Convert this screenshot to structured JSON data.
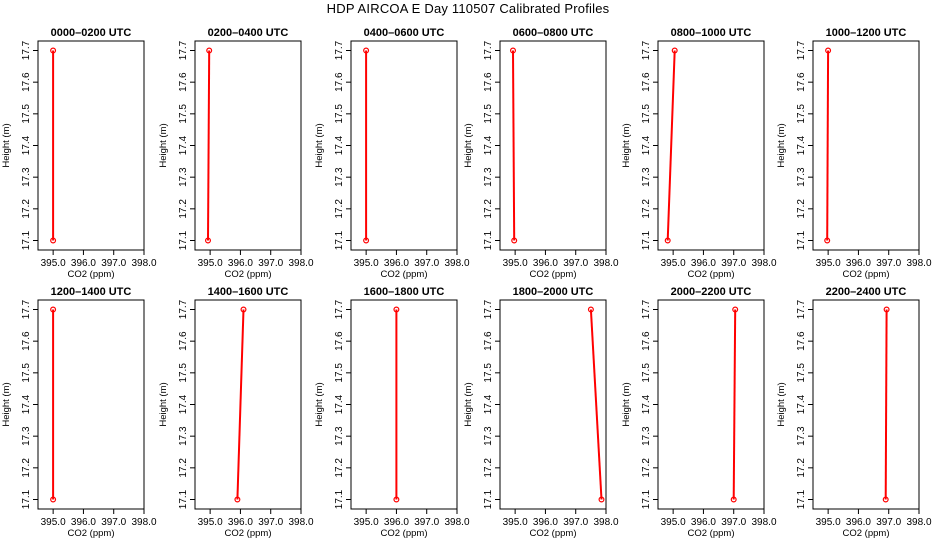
{
  "page_title": "HDP AIRCOA E  Day 110507  Calibrated Profiles",
  "colors": {
    "profile_line": "#ff0000",
    "marker": "#ff0000",
    "frame": "#000000"
  },
  "chart_data": [
    {
      "type": "line",
      "title": "0000–0200 UTC",
      "xlabel": "CO2 (ppm)",
      "ylabel": "Height (m)",
      "xlim": [
        394.5,
        398.0
      ],
      "ylim": [
        17.07,
        17.73
      ],
      "x_ticks": [
        "395.0",
        "396.0",
        "397.0",
        "398.0"
      ],
      "y_ticks": [
        "17.1",
        "17.2",
        "17.3",
        "17.4",
        "17.5",
        "17.6",
        "17.7"
      ],
      "grid": false,
      "series": [
        {
          "x": [
            395.0,
            395.0
          ],
          "y": [
            17.1,
            17.7
          ]
        }
      ]
    },
    {
      "type": "line",
      "title": "0200–0400 UTC",
      "xlabel": "CO2 (ppm)",
      "ylabel": "Height (m)",
      "xlim": [
        394.5,
        398.0
      ],
      "ylim": [
        17.07,
        17.73
      ],
      "x_ticks": [
        "395.0",
        "396.0",
        "397.0",
        "398.0"
      ],
      "y_ticks": [
        "17.1",
        "17.2",
        "17.3",
        "17.4",
        "17.5",
        "17.6",
        "17.7"
      ],
      "grid": false,
      "series": [
        {
          "x": [
            394.93,
            394.97
          ],
          "y": [
            17.1,
            17.7
          ]
        }
      ]
    },
    {
      "type": "line",
      "title": "0400–0600 UTC",
      "xlabel": "CO2 (ppm)",
      "ylabel": "Height (m)",
      "xlim": [
        394.5,
        398.0
      ],
      "ylim": [
        17.07,
        17.73
      ],
      "x_ticks": [
        "395.0",
        "396.0",
        "397.0",
        "398.0"
      ],
      "y_ticks": [
        "17.1",
        "17.2",
        "17.3",
        "17.4",
        "17.5",
        "17.6",
        "17.7"
      ],
      "grid": false,
      "series": [
        {
          "x": [
            395.0,
            395.0
          ],
          "y": [
            17.1,
            17.7
          ]
        }
      ]
    },
    {
      "type": "line",
      "title": "0600–0800 UTC",
      "xlabel": "CO2 (ppm)",
      "ylabel": "Height (m)",
      "xlim": [
        394.5,
        398.0
      ],
      "ylim": [
        17.07,
        17.73
      ],
      "x_ticks": [
        "395.0",
        "396.0",
        "397.0",
        "398.0"
      ],
      "y_ticks": [
        "17.1",
        "17.2",
        "17.3",
        "17.4",
        "17.5",
        "17.6",
        "17.7"
      ],
      "grid": false,
      "series": [
        {
          "x": [
            394.97,
            394.93
          ],
          "y": [
            17.1,
            17.7
          ]
        }
      ]
    },
    {
      "type": "line",
      "title": "0800–1000 UTC",
      "xlabel": "CO2 (ppm)",
      "ylabel": "Height (m)",
      "xlim": [
        394.5,
        398.0
      ],
      "ylim": [
        17.07,
        17.73
      ],
      "x_ticks": [
        "395.0",
        "396.0",
        "397.0",
        "398.0"
      ],
      "y_ticks": [
        "17.1",
        "17.2",
        "17.3",
        "17.4",
        "17.5",
        "17.6",
        "17.7"
      ],
      "grid": false,
      "series": [
        {
          "x": [
            394.82,
            395.05
          ],
          "y": [
            17.1,
            17.7
          ]
        }
      ]
    },
    {
      "type": "line",
      "title": "1000–1200 UTC",
      "xlabel": "CO2 (ppm)",
      "ylabel": "Height (m)",
      "xlim": [
        394.5,
        398.0
      ],
      "ylim": [
        17.07,
        17.73
      ],
      "x_ticks": [
        "395.0",
        "396.0",
        "397.0",
        "398.0"
      ],
      "y_ticks": [
        "17.1",
        "17.2",
        "17.3",
        "17.4",
        "17.5",
        "17.6",
        "17.7"
      ],
      "grid": false,
      "series": [
        {
          "x": [
            394.97,
            395.0
          ],
          "y": [
            17.1,
            17.7
          ]
        }
      ]
    },
    {
      "type": "line",
      "title": "1200–1400 UTC",
      "xlabel": "CO2 (ppm)",
      "ylabel": "Height (m)",
      "xlim": [
        394.5,
        398.0
      ],
      "ylim": [
        17.07,
        17.73
      ],
      "x_ticks": [
        "395.0",
        "396.0",
        "397.0",
        "398.0"
      ],
      "y_ticks": [
        "17.1",
        "17.2",
        "17.3",
        "17.4",
        "17.5",
        "17.6",
        "17.7"
      ],
      "grid": false,
      "series": [
        {
          "x": [
            395.0,
            395.0
          ],
          "y": [
            17.1,
            17.7
          ]
        }
      ]
    },
    {
      "type": "line",
      "title": "1400–1600 UTC",
      "xlabel": "CO2 (ppm)",
      "ylabel": "Height (m)",
      "xlim": [
        394.5,
        398.0
      ],
      "ylim": [
        17.07,
        17.73
      ],
      "x_ticks": [
        "395.0",
        "396.0",
        "397.0",
        "398.0"
      ],
      "y_ticks": [
        "17.1",
        "17.2",
        "17.3",
        "17.4",
        "17.5",
        "17.6",
        "17.7"
      ],
      "grid": false,
      "series": [
        {
          "x": [
            395.9,
            396.1
          ],
          "y": [
            17.1,
            17.7
          ]
        }
      ]
    },
    {
      "type": "line",
      "title": "1600–1800 UTC",
      "xlabel": "CO2 (ppm)",
      "ylabel": "Height (m)",
      "xlim": [
        394.5,
        398.0
      ],
      "ylim": [
        17.07,
        17.73
      ],
      "x_ticks": [
        "395.0",
        "396.0",
        "397.0",
        "398.0"
      ],
      "y_ticks": [
        "17.1",
        "17.2",
        "17.3",
        "17.4",
        "17.5",
        "17.6",
        "17.7"
      ],
      "grid": false,
      "series": [
        {
          "x": [
            396.0,
            396.0
          ],
          "y": [
            17.1,
            17.7
          ]
        }
      ]
    },
    {
      "type": "line",
      "title": "1800–2000 UTC",
      "xlabel": "CO2 (ppm)",
      "ylabel": "Height (m)",
      "xlim": [
        394.5,
        398.0
      ],
      "ylim": [
        17.07,
        17.73
      ],
      "x_ticks": [
        "395.0",
        "396.0",
        "397.0",
        "398.0"
      ],
      "y_ticks": [
        "17.1",
        "17.2",
        "17.3",
        "17.4",
        "17.5",
        "17.6",
        "17.7"
      ],
      "grid": false,
      "series": [
        {
          "x": [
            397.85,
            397.5
          ],
          "y": [
            17.1,
            17.7
          ]
        }
      ]
    },
    {
      "type": "line",
      "title": "2000–2200 UTC",
      "xlabel": "CO2 (ppm)",
      "ylabel": "Height (m)",
      "xlim": [
        394.5,
        398.0
      ],
      "ylim": [
        17.07,
        17.73
      ],
      "x_ticks": [
        "395.0",
        "396.0",
        "397.0",
        "398.0"
      ],
      "y_ticks": [
        "17.1",
        "17.2",
        "17.3",
        "17.4",
        "17.5",
        "17.6",
        "17.7"
      ],
      "grid": false,
      "series": [
        {
          "x": [
            397.0,
            397.05
          ],
          "y": [
            17.1,
            17.7
          ]
        }
      ]
    },
    {
      "type": "line",
      "title": "2200–2400 UTC",
      "xlabel": "CO2 (ppm)",
      "ylabel": "Height (m)",
      "xlim": [
        394.5,
        398.0
      ],
      "ylim": [
        17.07,
        17.73
      ],
      "x_ticks": [
        "395.0",
        "396.0",
        "397.0",
        "398.0"
      ],
      "y_ticks": [
        "17.1",
        "17.2",
        "17.3",
        "17.4",
        "17.5",
        "17.6",
        "17.7"
      ],
      "grid": false,
      "series": [
        {
          "x": [
            396.9,
            396.93
          ],
          "y": [
            17.1,
            17.7
          ]
        }
      ]
    }
  ]
}
